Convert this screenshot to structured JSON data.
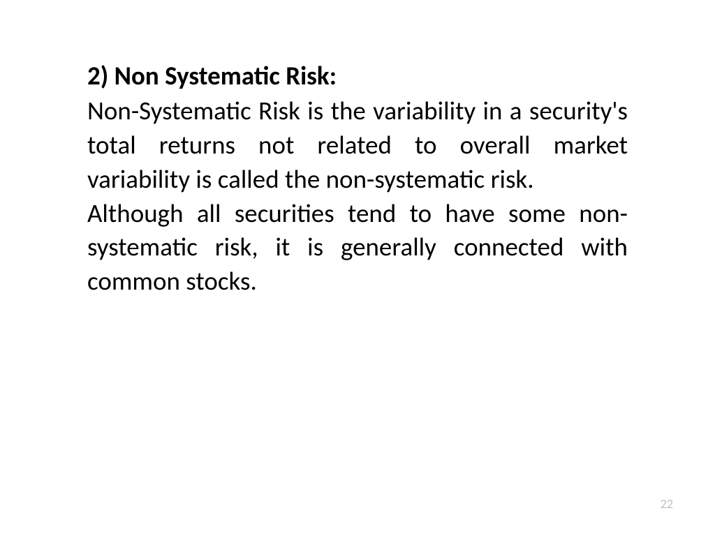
{
  "slide": {
    "heading": "2) Non Systematic Risk:",
    "paragraph1": "Non-Systematic Risk is the variability in a security's total returns not related to overall market variability is called the non-systematic risk.",
    "paragraph2": "Although all securities tend to have some non-systematic risk, it is generally connected with common stocks.",
    "pageNumber": "22"
  },
  "styles": {
    "backgroundColor": "#ffffff",
    "textColor": "#000000",
    "pageNumberColor": "#bfbfbf",
    "headingFontSize": 37,
    "bodyFontSize": 37,
    "pageNumberFontSize": 18,
    "fontFamily": "Calibri"
  }
}
